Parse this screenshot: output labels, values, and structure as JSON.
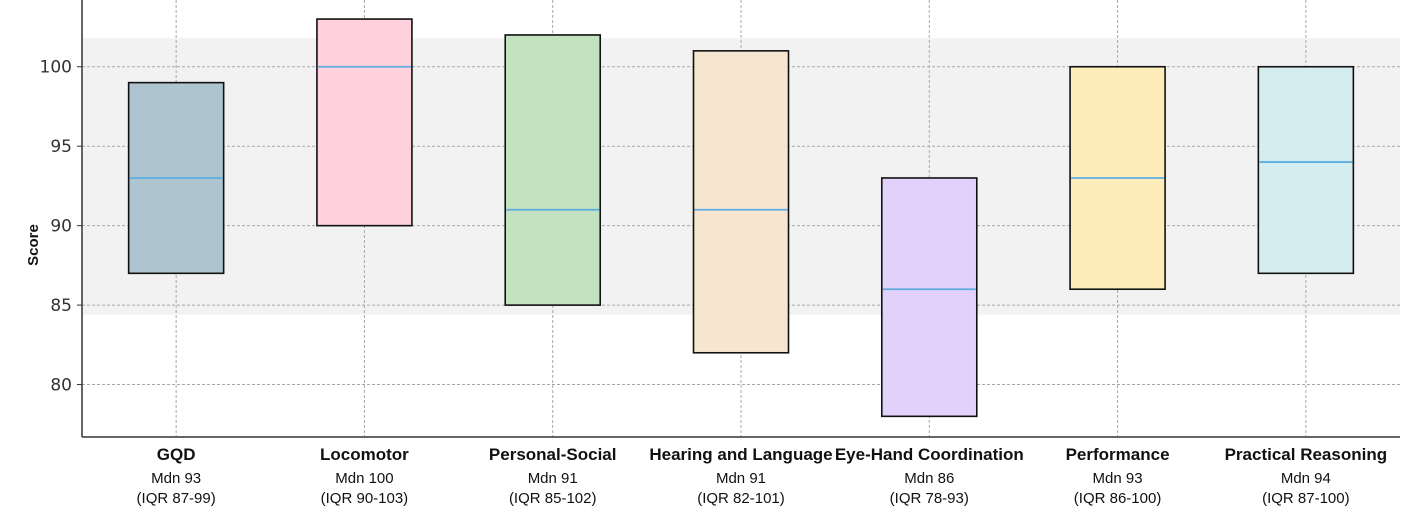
{
  "chart_data": {
    "type": "box",
    "ylabel": "Score",
    "xlabel": "",
    "title": "",
    "ylim": [
      76.7,
      104.2
    ],
    "yticks": [
      80,
      85,
      90,
      95,
      100
    ],
    "grid": true,
    "median_color": "#5dade2",
    "plot_background": "#f2f2f2",
    "categories": [
      {
        "name": "GQD",
        "median_label": "Mdn 93",
        "iqr_label": "(IQR 87-99)",
        "q1": 87,
        "median": 93,
        "q3": 99,
        "color": "#aec4cf"
      },
      {
        "name": "Locomotor",
        "median_label": "Mdn 100",
        "iqr_label": "(IQR 90-103)",
        "q1": 90,
        "median": 100,
        "q3": 103,
        "color": "#ffd1dc"
      },
      {
        "name": "Personal-Social",
        "median_label": "Mdn 91",
        "iqr_label": "(IQR 85-102)",
        "q1": 85,
        "median": 91,
        "q3": 102,
        "color": "#c3e2c0"
      },
      {
        "name": "Hearing and Language",
        "median_label": "Mdn 91",
        "iqr_label": "(IQR 82-101)",
        "q1": 82,
        "median": 91,
        "q3": 101,
        "color": "#f7e6cf"
      },
      {
        "name": "Eye-Hand Coordination",
        "median_label": "Mdn 86",
        "iqr_label": "(IQR 78-93)",
        "q1": 78,
        "median": 86,
        "q3": 93,
        "color": "#e2d2fb"
      },
      {
        "name": "Performance",
        "median_label": "Mdn 93",
        "iqr_label": "(IQR 86-100)",
        "q1": 86,
        "median": 93,
        "q3": 100,
        "color": "#feecbb"
      },
      {
        "name": "Practical Reasoning",
        "median_label": "Mdn 94",
        "iqr_label": "(IQR 87-100)",
        "q1": 87,
        "median": 94,
        "q3": 100,
        "color": "#d4eef0"
      }
    ]
  }
}
